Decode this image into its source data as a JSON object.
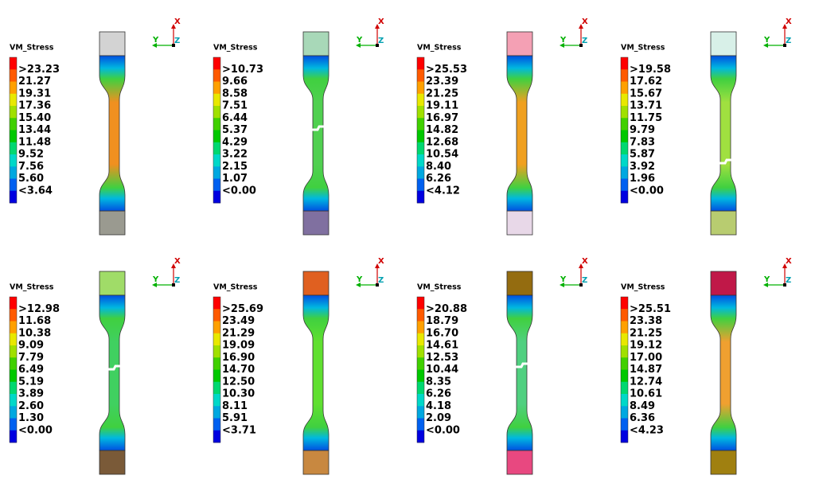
{
  "panels": [
    {
      "legend_title": "VM_Stress",
      "labels": [
        ">23.23",
        "21.27",
        "19.31",
        "17.36",
        "15.40",
        "13.44",
        "11.48",
        "9.52",
        "7.56",
        "5.60",
        "<3.64"
      ],
      "grip_colors": [
        "#d3d3d3",
        "#9a9a90"
      ],
      "axes": [
        "X",
        "Y",
        "Z"
      ]
    },
    {
      "legend_title": "VM_Stress",
      "labels": [
        ">10.73",
        "9.66",
        "8.58",
        "7.51",
        "6.44",
        "5.37",
        "4.29",
        "3.22",
        "2.15",
        "1.07",
        "<0.00"
      ],
      "grip_colors": [
        "#a8d8b8",
        "#8070a0"
      ],
      "axes": [
        "X",
        "Y",
        "Z"
      ]
    },
    {
      "legend_title": "VM_Stress",
      "labels": [
        ">25.53",
        "23.39",
        "21.25",
        "19.11",
        "16.97",
        "14.82",
        "12.68",
        "10.54",
        "8.40",
        "6.26",
        "<4.12"
      ],
      "grip_colors": [
        "#f4a0b4",
        "#e8d8e8"
      ],
      "axes": [
        "X",
        "Y",
        "Z"
      ]
    },
    {
      "legend_title": "VM_Stress",
      "labels": [
        ">19.58",
        "17.62",
        "15.67",
        "13.71",
        "11.75",
        "9.79",
        "7.83",
        "5.87",
        "3.92",
        "1.96",
        "<0.00"
      ],
      "grip_colors": [
        "#d8f0e8",
        "#b8cc70"
      ],
      "axes": [
        "X",
        "Y",
        "Z"
      ]
    },
    {
      "legend_title": "VM_Stress",
      "labels": [
        ">12.98",
        "11.68",
        "10.38",
        "9.09",
        "7.79",
        "6.49",
        "5.19",
        "3.89",
        "2.60",
        "1.30",
        "<0.00"
      ],
      "grip_colors": [
        "#a0dc68",
        "#7a5a38"
      ],
      "axes": [
        "X",
        "Y",
        "Z"
      ]
    },
    {
      "legend_title": "VM_Stress",
      "labels": [
        ">25.69",
        "23.49",
        "21.29",
        "19.09",
        "16.90",
        "14.70",
        "12.50",
        "10.30",
        "8.11",
        "5.91",
        "<3.71"
      ],
      "grip_colors": [
        "#e06020",
        "#c88840"
      ],
      "axes": [
        "X",
        "Y",
        "Z"
      ]
    },
    {
      "legend_title": "VM_Stress",
      "labels": [
        ">20.88",
        "18.79",
        "16.70",
        "14.61",
        "12.53",
        "10.44",
        "8.35",
        "6.26",
        "4.18",
        "2.09",
        "<0.00"
      ],
      "grip_colors": [
        "#946c10",
        "#e84880"
      ],
      "axes": [
        "X",
        "Y",
        "Z"
      ]
    },
    {
      "legend_title": "VM_Stress",
      "labels": [
        ">25.51",
        "23.38",
        "21.25",
        "19.12",
        "17.00",
        "14.87",
        "12.74",
        "10.61",
        "8.49",
        "6.36",
        "<4.23"
      ],
      "grip_colors": [
        "#c01848",
        "#a08010"
      ],
      "axes": [
        "X",
        "Y",
        "Z"
      ]
    }
  ]
}
